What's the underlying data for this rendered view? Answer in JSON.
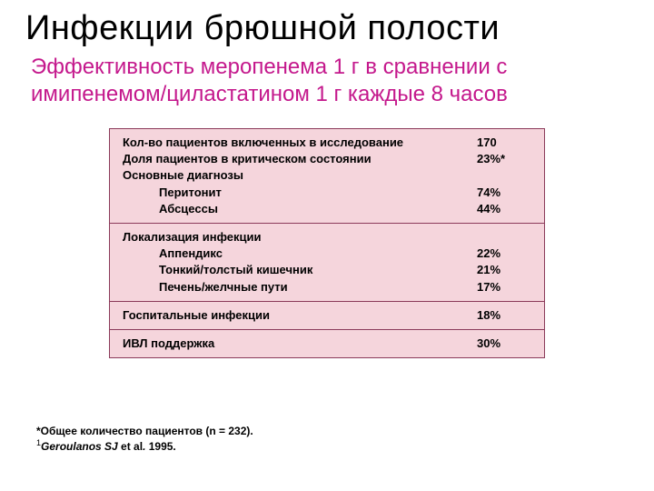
{
  "colors": {
    "background": "#ffffff",
    "title_color": "#000000",
    "subtitle_color": "#c4188c",
    "box_bg": "#f5d5dc",
    "box_border": "#8b3a5a",
    "text_color": "#000000"
  },
  "title": "Инфекции брюшной полости",
  "subtitle": "Эффективность меропенема 1 г в сравнении с имипенемом/циластатином 1 г каждые 8 часов",
  "sections": [
    {
      "rows": [
        {
          "label": "Кол-во пациентов включенных в исследование",
          "value": "170",
          "bold": true
        },
        {
          "label": "Доля пациентов в критическом состоянии",
          "value": "23%*",
          "bold": true
        },
        {
          "label": "Основные диагнозы",
          "value": "",
          "bold": true
        },
        {
          "label": "Перитонит",
          "value": "74%",
          "bold": true,
          "indent": true
        },
        {
          "label": "Абсцессы",
          "value": "44%",
          "bold": true,
          "indent": true
        }
      ]
    },
    {
      "rows": [
        {
          "label": "Локализация инфекции",
          "value": "",
          "bold": true
        },
        {
          "label": "Аппендикс",
          "value": "22%",
          "bold": true,
          "indent": true
        },
        {
          "label": "Тонкий/толстый кишечник",
          "value": "21%",
          "bold": true,
          "indent": true
        },
        {
          "label": "Печень/желчные пути",
          "value": "17%",
          "bold": true,
          "indent": true
        }
      ]
    },
    {
      "rows": [
        {
          "label": "Госпитальные инфекции",
          "value": "18%",
          "bold": true
        }
      ]
    },
    {
      "rows": [
        {
          "label": "ИВЛ поддержка",
          "value": "30%",
          "bold": true
        }
      ]
    }
  ],
  "footnotes": [
    "*Общее количество пациентов (n = 232).",
    "¹Geroulanos SJ et al. 1995."
  ]
}
